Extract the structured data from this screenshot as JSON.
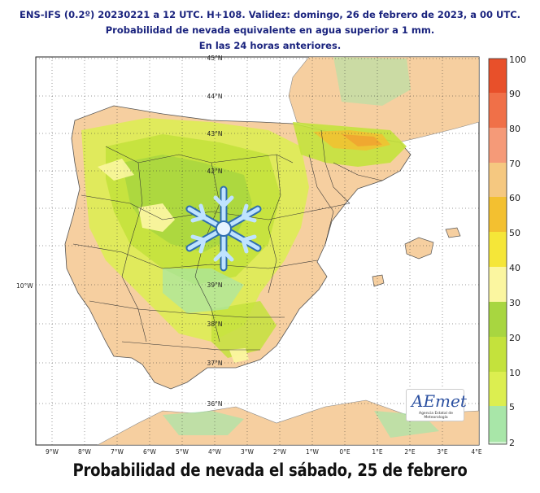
{
  "header": {
    "line1": "ENS-IFS (0.2º) 20230221 a 12 UTC. H+108. Validez: domingo, 26 de febrero de 2023, a 00 UTC.",
    "line2": "Probabilidad de nevada equivalente en agua superior a 1 mm.",
    "line3": "En las 24 horas anteriores."
  },
  "lon_labels": [
    "9°W",
    "8°W",
    "7°W",
    "6°W",
    "5°W",
    "4°W",
    "3°W",
    "2°W",
    "1°W",
    "0°E",
    "1°E",
    "2°E",
    "3°E",
    "4°E"
  ],
  "lat_labels": [
    "45°N",
    "44°N",
    "43°N",
    "42°N",
    "39°N",
    "38°N",
    "37°N",
    "36°N"
  ],
  "left_lon_label": "10°W",
  "colorbar": {
    "labels": [
      "100",
      "90",
      "80",
      "70",
      "60",
      "50",
      "40",
      "30",
      "20",
      "10",
      "5",
      "2"
    ],
    "colors": [
      "#e8502a",
      "#f07048",
      "#f59a78",
      "#f5c880",
      "#f3c030",
      "#f5e638",
      "#fbf6a0",
      "#a8d640",
      "#c4e23c",
      "#dcee50",
      "#a8e6a8",
      "#d4f4d4"
    ]
  },
  "logo": {
    "name": "AEmet",
    "subtitle": "Agencia Estatal de Meteorología"
  },
  "caption": "Probabilidad de nevada el sábado, 25 de febrero",
  "colors": {
    "land": "#f6cfa0",
    "sea": "#ffffff",
    "header": "#1a237e"
  },
  "icons": [
    "snowflake-icon"
  ]
}
